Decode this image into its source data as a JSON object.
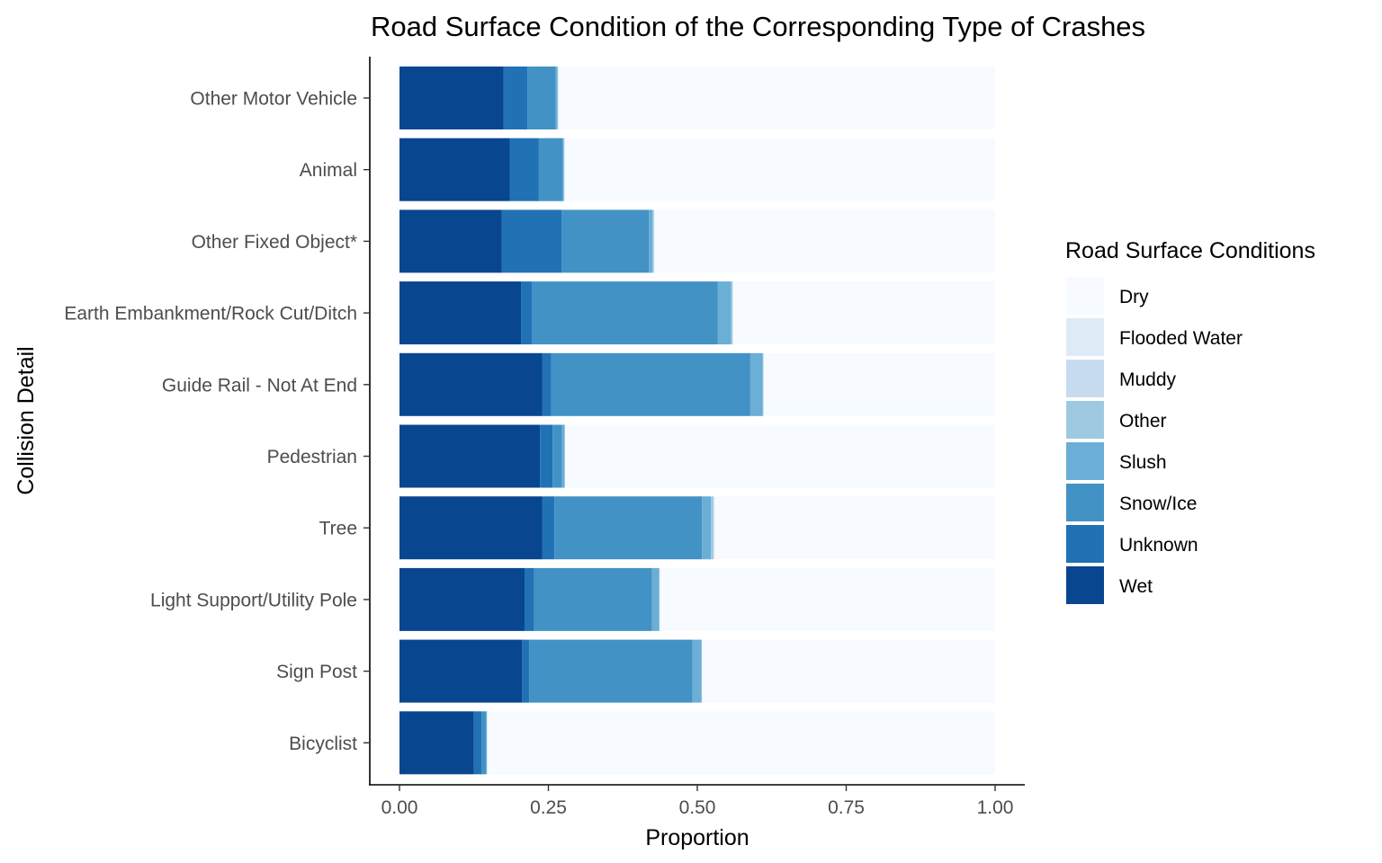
{
  "chart_data": {
    "type": "bar",
    "orientation": "horizontal",
    "stacked": true,
    "title": "Road Surface Condition of the Corresponding Type of Crashes",
    "xlabel": "Proportion",
    "ylabel": "Collision Detail",
    "xlim": [
      0,
      1
    ],
    "x_ticks": [
      "0.00",
      "0.25",
      "0.50",
      "0.75",
      "1.00"
    ],
    "grid": false,
    "legend_position": "right",
    "legend_title": "Road Surface Conditions",
    "categories": [
      "Other Motor Vehicle",
      "Animal",
      "Other Fixed Object*",
      "Earth Embankment/Rock Cut/Ditch",
      "Guide Rail - Not At End",
      "Pedestrian",
      "Tree",
      "Light Support/Utility Pole",
      "Sign Post",
      "Bicyclist"
    ],
    "series": [
      {
        "name": "Wet",
        "color": "#08468f",
        "values": [
          0.175,
          0.185,
          0.172,
          0.204,
          0.24,
          0.236,
          0.24,
          0.21,
          0.206,
          0.125
        ]
      },
      {
        "name": "Unknown",
        "color": "#2171b5",
        "values": [
          0.04,
          0.049,
          0.1,
          0.018,
          0.015,
          0.021,
          0.02,
          0.016,
          0.012,
          0.013
        ]
      },
      {
        "name": "Snow/Ice",
        "color": "#4292c6",
        "values": [
          0.047,
          0.04,
          0.147,
          0.312,
          0.334,
          0.016,
          0.248,
          0.198,
          0.274,
          0.007
        ]
      },
      {
        "name": "Slush",
        "color": "#6baed6",
        "values": [
          0.003,
          0.002,
          0.006,
          0.023,
          0.021,
          0.004,
          0.015,
          0.012,
          0.015,
          0.002
        ]
      },
      {
        "name": "Other",
        "color": "#9ecae1",
        "values": [
          0.001,
          0.001,
          0.002,
          0.002,
          0.001,
          0.001,
          0.004,
          0.001,
          0.001,
          0.0
        ]
      },
      {
        "name": "Muddy",
        "color": "#c6dbef",
        "values": [
          0.001,
          0.0,
          0.001,
          0.001,
          0.0,
          0.0,
          0.001,
          0.0,
          0.0,
          0.0
        ]
      },
      {
        "name": "Flooded Water",
        "color": "#deebf7",
        "values": [
          0.0,
          0.0,
          0.0,
          0.0,
          0.0,
          0.0,
          0.001,
          0.0,
          0.0,
          0.0
        ]
      },
      {
        "name": "Dry",
        "color": "#f7fbff",
        "values": [
          0.733,
          0.723,
          0.572,
          0.44,
          0.389,
          0.722,
          0.471,
          0.563,
          0.492,
          0.853
        ]
      }
    ]
  }
}
